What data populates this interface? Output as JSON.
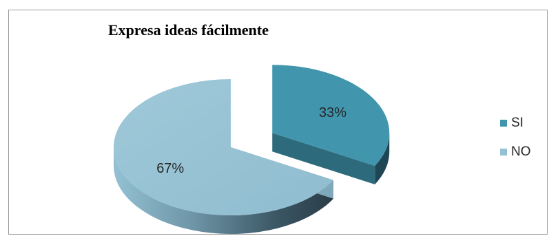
{
  "chart_data": {
    "type": "pie",
    "title": "Expresa ideas fácilmente",
    "series": [
      {
        "name": "SI",
        "value": 33,
        "label": "33%",
        "color": "#4196ae"
      },
      {
        "name": "NO",
        "value": 67,
        "label": "67%",
        "color": "#93c1d3"
      }
    ],
    "exploded": "SI",
    "style": "3d",
    "legend_position": "right"
  }
}
